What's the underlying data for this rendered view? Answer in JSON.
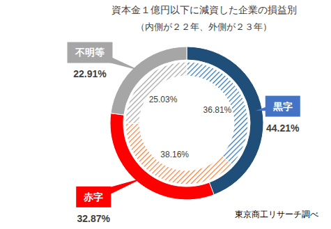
{
  "chart_data": {
    "type": "pie",
    "title": "資本金１億円以下に減資した企業の損益別",
    "subtitle": "（内側が２２年、外側が２３年）",
    "source": "東京商工リサーチ調べ",
    "categories": [
      "黒字",
      "赤字",
      "不明等"
    ],
    "colors": [
      "#4472c4",
      "#ff0000",
      "#a6a6a6"
    ],
    "data_labels": true,
    "series": [
      {
        "values": [
          36.81,
          38.16,
          25.03
        ],
        "value_labels": [
          "36.81%",
          "38.16%",
          "25.03%"
        ],
        "colors": [
          "#2e75b6",
          "#f4813b",
          "#a6a6a6"
        ]
      },
      {
        "values": [
          44.21,
          32.87,
          22.91
        ],
        "value_labels": [
          "44.21%",
          "32.87%",
          "22.91%"
        ],
        "colors": [
          "#1f4e79",
          "#ff0000",
          "#a6a6a6"
        ]
      }
    ]
  }
}
